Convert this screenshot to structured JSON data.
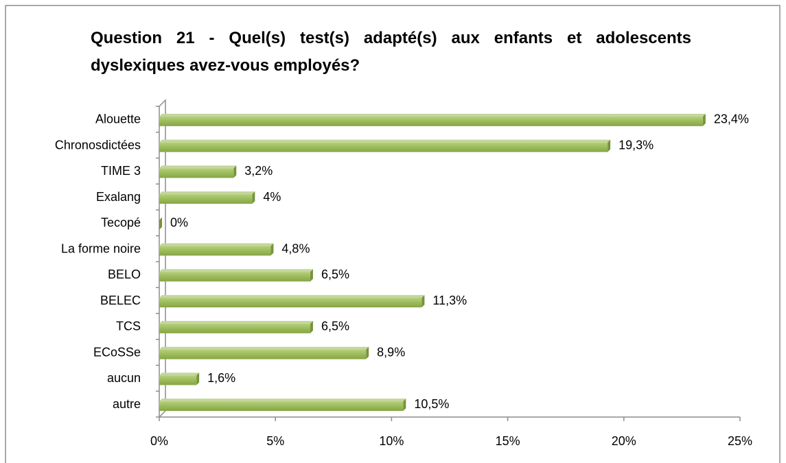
{
  "chart_data": {
    "type": "bar",
    "orientation": "horizontal",
    "title": "Question 21 - Quel(s) test(s) adapté(s) aux enfants et adolescents dyslexiques avez-vous employés?",
    "categories": [
      "Alouette",
      "Chronosdictées",
      "TIME 3",
      "Exalang",
      "Tecopé",
      "La forme noire",
      "BELO",
      "BELEC",
      "TCS",
      "ECoSSe",
      "aucun",
      "autre"
    ],
    "values": [
      23.4,
      19.3,
      3.2,
      4,
      0,
      4.8,
      6.5,
      11.3,
      6.5,
      8.9,
      1.6,
      10.5
    ],
    "value_labels": [
      "23,4%",
      "19,3%",
      "3,2%",
      "4%",
      "0%",
      "4,8%",
      "6,5%",
      "11,3%",
      "6,5%",
      "8,9%",
      "1,6%",
      "10,5%"
    ],
    "color": "#9bbb59",
    "xlim": [
      0,
      25
    ],
    "xticks": [
      {
        "value": 0,
        "label": "0%"
      },
      {
        "value": 5,
        "label": "5%"
      },
      {
        "value": 10,
        "label": "10%"
      },
      {
        "value": 15,
        "label": "15%"
      },
      {
        "value": 20,
        "label": "20%"
      },
      {
        "value": 25,
        "label": "25%"
      }
    ],
    "grid": false
  }
}
